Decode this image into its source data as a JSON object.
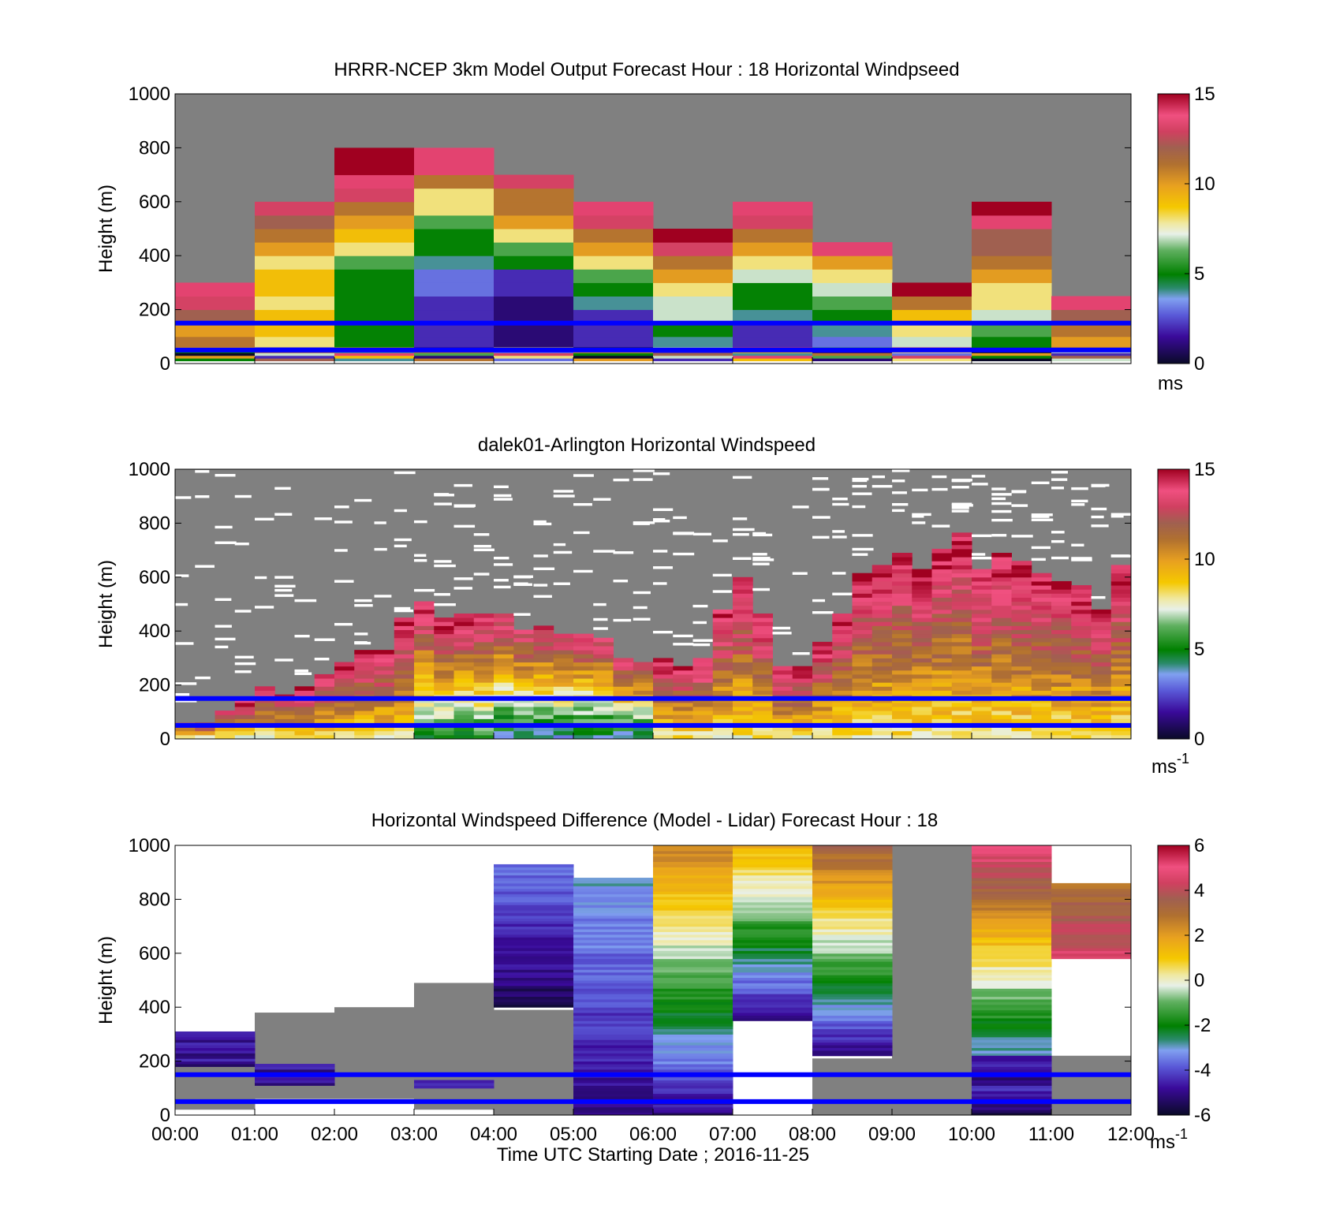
{
  "chart_data": [
    {
      "type": "heatmap",
      "title": "HRRR-NCEP 3km Model Output   Forecast Hour : 18 Horizontal Windpseed",
      "ylabel": "Height (m)",
      "ylim": [
        0,
        1000
      ],
      "yticks": [
        "0",
        "200",
        "400",
        "600",
        "800",
        "1000"
      ],
      "colorbar": {
        "min": 0,
        "max": 15,
        "ticks": [
          "0",
          "5",
          "10",
          "15"
        ],
        "unit_main": "ms",
        "unit_sup": ""
      },
      "reference_lines_m": [
        50,
        150
      ],
      "columns": [
        {
          "start": 0,
          "top_m": 300
        },
        {
          "start": 1,
          "top_m": 600
        },
        {
          "start": 2,
          "top_m": 800
        },
        {
          "start": 3,
          "top_m": 800
        },
        {
          "start": 4,
          "top_m": 700
        },
        {
          "start": 5,
          "top_m": 600
        },
        {
          "start": 6,
          "top_m": 500
        },
        {
          "start": 7,
          "top_m": 600
        },
        {
          "start": 8,
          "top_m": 450
        },
        {
          "start": 9,
          "top_m": 300
        },
        {
          "start": 10,
          "top_m": 600
        },
        {
          "start": 11,
          "top_m": 250
        }
      ],
      "cells_note_m_per_row": 50,
      "cells": [
        [
          0,
          0,
          14
        ],
        [
          0,
          1,
          11
        ],
        [
          0,
          2,
          10
        ],
        [
          0,
          3,
          12
        ],
        [
          0,
          4,
          13
        ],
        [
          0,
          5,
          14
        ],
        [
          1,
          0,
          7
        ],
        [
          1,
          1,
          8
        ],
        [
          1,
          2,
          9
        ],
        [
          1,
          3,
          9
        ],
        [
          1,
          4,
          8
        ],
        [
          1,
          5,
          9
        ],
        [
          1,
          6,
          9
        ],
        [
          1,
          7,
          8
        ],
        [
          1,
          8,
          10
        ],
        [
          1,
          9,
          11
        ],
        [
          1,
          10,
          12
        ],
        [
          1,
          11,
          13
        ],
        [
          2,
          0,
          3
        ],
        [
          2,
          1,
          5
        ],
        [
          2,
          2,
          5
        ],
        [
          2,
          3,
          5
        ],
        [
          2,
          4,
          5
        ],
        [
          2,
          5,
          5
        ],
        [
          2,
          6,
          5
        ],
        [
          2,
          7,
          6
        ],
        [
          2,
          8,
          8
        ],
        [
          2,
          9,
          9
        ],
        [
          2,
          10,
          10
        ],
        [
          2,
          11,
          11
        ],
        [
          2,
          12,
          13
        ],
        [
          2,
          13,
          14
        ],
        [
          2,
          14,
          15
        ],
        [
          2,
          15,
          15
        ],
        [
          3,
          0,
          2
        ],
        [
          3,
          1,
          2
        ],
        [
          3,
          2,
          2
        ],
        [
          3,
          3,
          2
        ],
        [
          3,
          4,
          2
        ],
        [
          3,
          5,
          3
        ],
        [
          3,
          6,
          3
        ],
        [
          3,
          7,
          4
        ],
        [
          3,
          8,
          5
        ],
        [
          3,
          9,
          5
        ],
        [
          3,
          10,
          6
        ],
        [
          3,
          11,
          8
        ],
        [
          3,
          12,
          8
        ],
        [
          3,
          13,
          11
        ],
        [
          3,
          14,
          14
        ],
        [
          3,
          15,
          14
        ],
        [
          4,
          0,
          1
        ],
        [
          4,
          1,
          1
        ],
        [
          4,
          2,
          1
        ],
        [
          4,
          3,
          1
        ],
        [
          4,
          4,
          1
        ],
        [
          4,
          5,
          2
        ],
        [
          4,
          6,
          2
        ],
        [
          4,
          7,
          5
        ],
        [
          4,
          8,
          6
        ],
        [
          4,
          9,
          8
        ],
        [
          4,
          10,
          10
        ],
        [
          4,
          11,
          11
        ],
        [
          4,
          12,
          11
        ],
        [
          4,
          13,
          13
        ],
        [
          5,
          0,
          1
        ],
        [
          5,
          1,
          2
        ],
        [
          5,
          2,
          2
        ],
        [
          5,
          3,
          2
        ],
        [
          5,
          4,
          4
        ],
        [
          5,
          5,
          5
        ],
        [
          5,
          6,
          6
        ],
        [
          5,
          7,
          8
        ],
        [
          5,
          8,
          10
        ],
        [
          5,
          9,
          11
        ],
        [
          5,
          10,
          13
        ],
        [
          5,
          11,
          14
        ],
        [
          6,
          0,
          5
        ],
        [
          6,
          1,
          4
        ],
        [
          6,
          2,
          5
        ],
        [
          6,
          3,
          7
        ],
        [
          6,
          4,
          7
        ],
        [
          6,
          5,
          8
        ],
        [
          6,
          6,
          10
        ],
        [
          6,
          7,
          11
        ],
        [
          6,
          8,
          13
        ],
        [
          6,
          9,
          15
        ],
        [
          7,
          0,
          1
        ],
        [
          7,
          1,
          2
        ],
        [
          7,
          2,
          2
        ],
        [
          7,
          3,
          4
        ],
        [
          7,
          4,
          5
        ],
        [
          7,
          5,
          5
        ],
        [
          7,
          6,
          7
        ],
        [
          7,
          7,
          8
        ],
        [
          7,
          8,
          10
        ],
        [
          7,
          9,
          11
        ],
        [
          7,
          10,
          13
        ],
        [
          7,
          11,
          14
        ],
        [
          8,
          0,
          2
        ],
        [
          8,
          1,
          3
        ],
        [
          8,
          2,
          4
        ],
        [
          8,
          3,
          5
        ],
        [
          8,
          4,
          6
        ],
        [
          8,
          5,
          7
        ],
        [
          8,
          6,
          8
        ],
        [
          8,
          7,
          10
        ],
        [
          8,
          8,
          14
        ],
        [
          9,
          0,
          5
        ],
        [
          9,
          1,
          7
        ],
        [
          9,
          2,
          8
        ],
        [
          9,
          3,
          9
        ],
        [
          9,
          4,
          11
        ],
        [
          9,
          5,
          15
        ],
        [
          10,
          0,
          5
        ],
        [
          10,
          1,
          5
        ],
        [
          10,
          2,
          6
        ],
        [
          10,
          3,
          7
        ],
        [
          10,
          4,
          8
        ],
        [
          10,
          5,
          8
        ],
        [
          10,
          6,
          10
        ],
        [
          10,
          7,
          11
        ],
        [
          10,
          8,
          12
        ],
        [
          10,
          9,
          12
        ],
        [
          10,
          10,
          14
        ],
        [
          10,
          11,
          15
        ],
        [
          11,
          0,
          9
        ],
        [
          11,
          1,
          10
        ],
        [
          11,
          2,
          11
        ],
        [
          11,
          3,
          12
        ],
        [
          11,
          4,
          14
        ]
      ]
    },
    {
      "type": "heatmap",
      "title": "dalek01-Arlington  Horizontal Windspeed",
      "ylabel": "Height (m)",
      "ylim": [
        0,
        1000
      ],
      "yticks": [
        "0",
        "200",
        "400",
        "600",
        "800",
        "1000"
      ],
      "colorbar": {
        "min": 0,
        "max": 15,
        "ticks": [
          "0",
          "5",
          "10",
          "15"
        ],
        "unit_main": "ms",
        "unit_sup": "-1"
      },
      "reference_lines_m": [
        50,
        150
      ],
      "profile_columns_per_hour": 4,
      "color_top_m": [
        60,
        50,
        100,
        140,
        190,
        160,
        190,
        240,
        280,
        320,
        330,
        440,
        510,
        440,
        460,
        460,
        460,
        400,
        410,
        390,
        380,
        370,
        290,
        280,
        290,
        270,
        290,
        480,
        590,
        460,
        270,
        260,
        360,
        460,
        610,
        640,
        690,
        630,
        700,
        760,
        630,
        680,
        660,
        610,
        580,
        560,
        480,
        640
      ]
    },
    {
      "type": "heatmap",
      "title": "Horizontal Windspeed Difference (Model - Lidar) Forecast Hour : 18",
      "ylabel": "Height (m)",
      "xlabel": "Time UTC  Starting Date ; 2016-11-25",
      "ylim": [
        0,
        1000
      ],
      "yticks": [
        "0",
        "200",
        "400",
        "600",
        "800",
        "1000"
      ],
      "xticks": [
        "00:00",
        "01:00",
        "02:00",
        "03:00",
        "04:00",
        "05:00",
        "06:00",
        "07:00",
        "08:00",
        "09:00",
        "10:00",
        "11:00",
        "12:00"
      ],
      "colorbar": {
        "min": -6,
        "max": 6,
        "ticks": [
          "-6",
          "-4",
          "-2",
          "0",
          "2",
          "4",
          "6"
        ],
        "unit_main": "ms",
        "unit_sup": "-1"
      },
      "reference_lines_m": [
        50,
        150
      ],
      "gradient_columns": [
        {
          "start": 4,
          "bottom_m": 400,
          "top_m": 930,
          "bottom_val": -5.5,
          "top_val": -3.5
        },
        {
          "start": 5,
          "bottom_m": 0,
          "top_m": 880,
          "bottom_val": -5,
          "top_val": -3
        },
        {
          "start": 6,
          "bottom_m": 0,
          "top_m": 1000,
          "bottom_val": -5,
          "top_val": 2.5
        },
        {
          "start": 7,
          "bottom_m": 350,
          "top_m": 1000,
          "bottom_val": -5,
          "top_val": 1.5
        },
        {
          "start": 8,
          "bottom_m": 220,
          "top_m": 1000,
          "bottom_val": -5,
          "top_val": 3.5
        },
        {
          "start": 10,
          "bottom_m": 0,
          "top_m": 1000,
          "bottom_val": -5.5,
          "top_val": 5
        },
        {
          "start": 11,
          "bottom_m": 580,
          "top_m": 860,
          "bottom_val": 4.5,
          "top_val": 3
        }
      ]
    }
  ]
}
